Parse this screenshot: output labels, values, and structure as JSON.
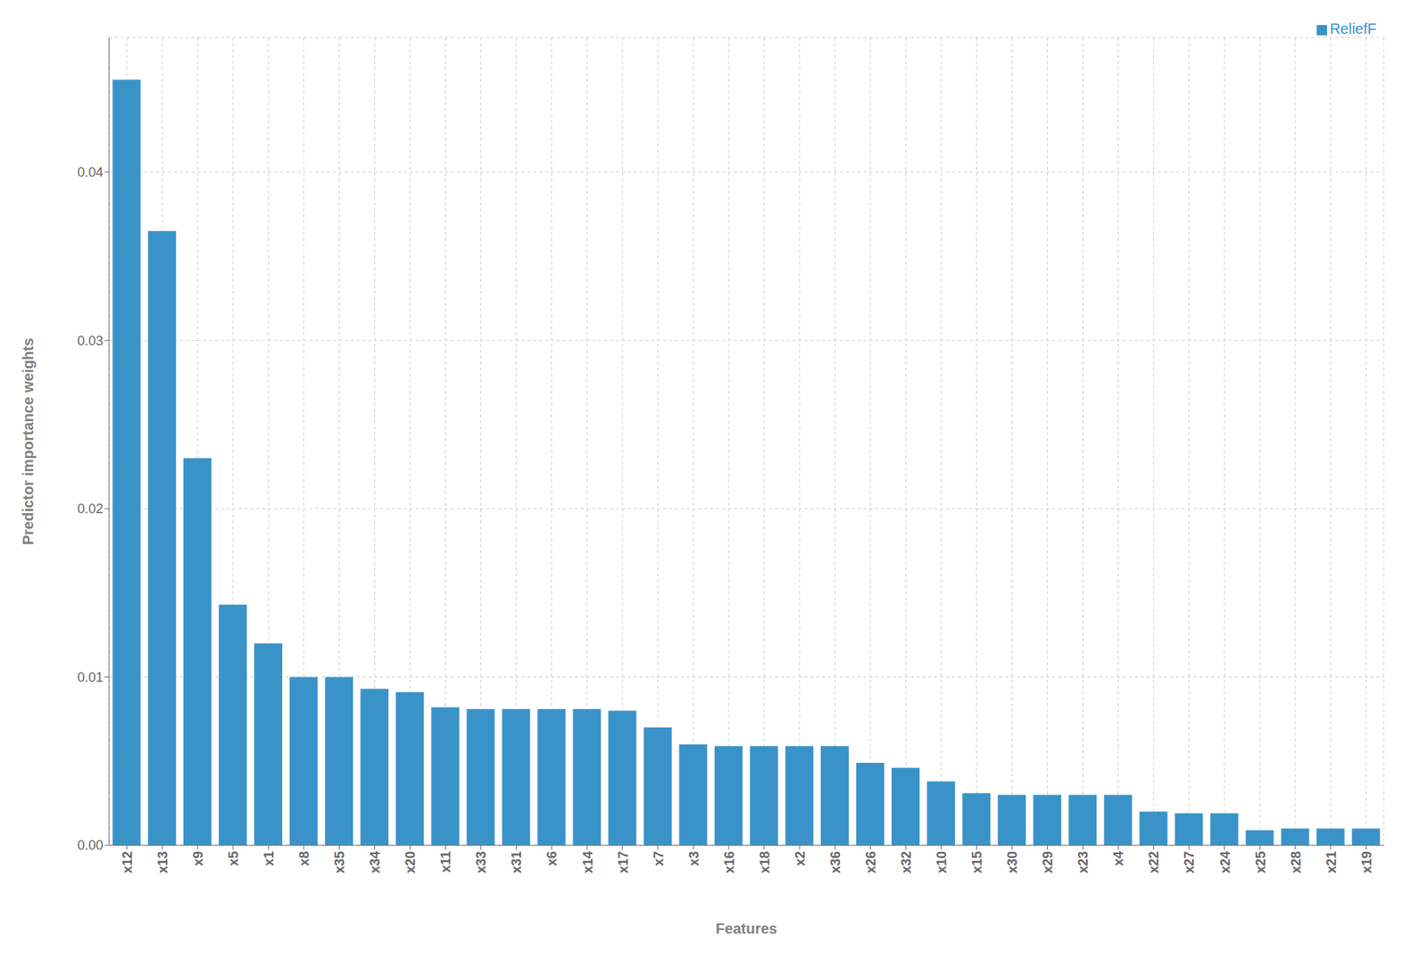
{
  "chart_data": {
    "type": "bar",
    "xlabel": "Features",
    "ylabel": "Predictor importance weights",
    "categories": [
      "x12",
      "x13",
      "x9",
      "x5",
      "x1",
      "x8",
      "x35",
      "x34",
      "x20",
      "x11",
      "x33",
      "x31",
      "x6",
      "x14",
      "x17",
      "x7",
      "x3",
      "x16",
      "x18",
      "x2",
      "x36",
      "x26",
      "x32",
      "x10",
      "x15",
      "x30",
      "x29",
      "x23",
      "x4",
      "x22",
      "x27",
      "x24",
      "x25",
      "x28",
      "x21",
      "x19"
    ],
    "series": [
      {
        "name": "ReliefF",
        "color": "#3a93c8",
        "values": [
          0.0455,
          0.0365,
          0.023,
          0.0143,
          0.012,
          0.01,
          0.01,
          0.0093,
          0.0091,
          0.0082,
          0.0081,
          0.0081,
          0.0081,
          0.0081,
          0.008,
          0.007,
          0.006,
          0.0059,
          0.0059,
          0.0059,
          0.0059,
          0.0049,
          0.0046,
          0.0038,
          0.0031,
          0.003,
          0.003,
          0.003,
          0.003,
          0.002,
          0.0019,
          0.0019,
          0.0009,
          0.001,
          0.001,
          0.001
        ]
      }
    ],
    "ylim": [
      0,
      0.048
    ],
    "yticks": [
      {
        "value": 0,
        "label": "0.00"
      },
      0.01,
      0.02,
      0.03,
      0.04
    ],
    "grid": true,
    "legend": "upper right"
  }
}
